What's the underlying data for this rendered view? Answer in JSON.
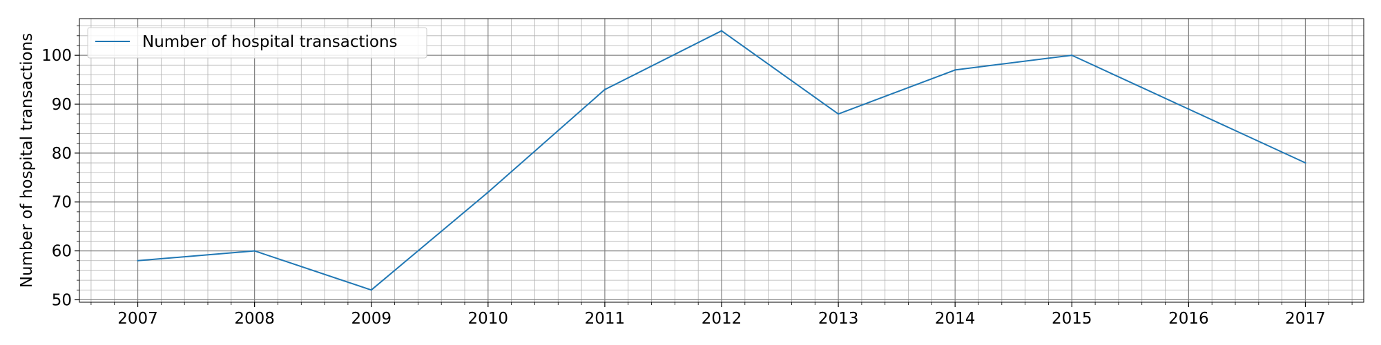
{
  "chart_data": {
    "type": "line",
    "title": "",
    "xlabel": "",
    "ylabel": "Number of hospital transactions",
    "x": [
      2007,
      2008,
      2009,
      2010,
      2011,
      2012,
      2013,
      2014,
      2015,
      2016,
      2017
    ],
    "x_tick_labels": [
      "2007",
      "2008",
      "2009",
      "2010",
      "2011",
      "2012",
      "2013",
      "2014",
      "2015",
      "2016",
      "2017"
    ],
    "y_ticks": [
      50,
      60,
      70,
      80,
      90,
      100
    ],
    "y_tick_labels": [
      "50",
      "60",
      "70",
      "80",
      "90",
      "100"
    ],
    "xlim": [
      2006.5,
      2017.5
    ],
    "ylim": [
      49.5,
      107.5
    ],
    "grid": true,
    "minor_grid": true,
    "legend_position": "top-left",
    "series": [
      {
        "name": "Number of hospital transactions",
        "color": "#1f77b4",
        "values": [
          58,
          60,
          52,
          72,
          93,
          105,
          88,
          97,
          100,
          89,
          78
        ]
      }
    ]
  }
}
